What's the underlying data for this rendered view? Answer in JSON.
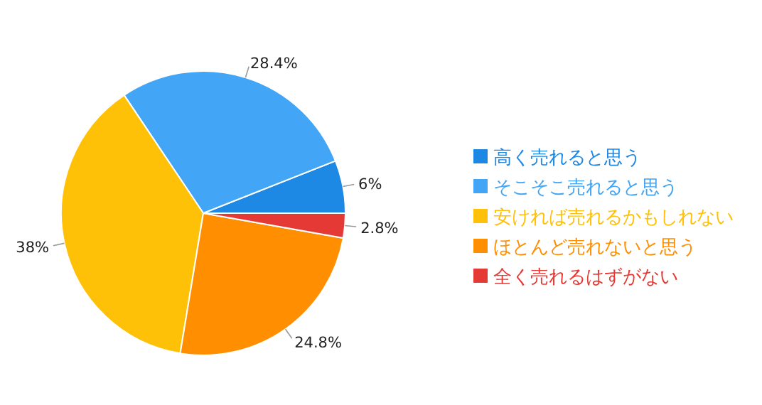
{
  "chart_data": {
    "type": "pie",
    "categories": [
      "高く売れると思う",
      "そこそこ売れると思う",
      "安ければ売れるかもしれない",
      "ほとんど売れないと思う",
      "全く売れるはずがない"
    ],
    "values": [
      6,
      28.4,
      38,
      24.8,
      2.8
    ],
    "colors": [
      "#1e88e5",
      "#42a5f5",
      "#ffc107",
      "#ff8f00",
      "#e53935"
    ],
    "value_labels": [
      "6%",
      "28.4%",
      "38%",
      "24.8%",
      "2.8%"
    ],
    "legend": "right"
  }
}
